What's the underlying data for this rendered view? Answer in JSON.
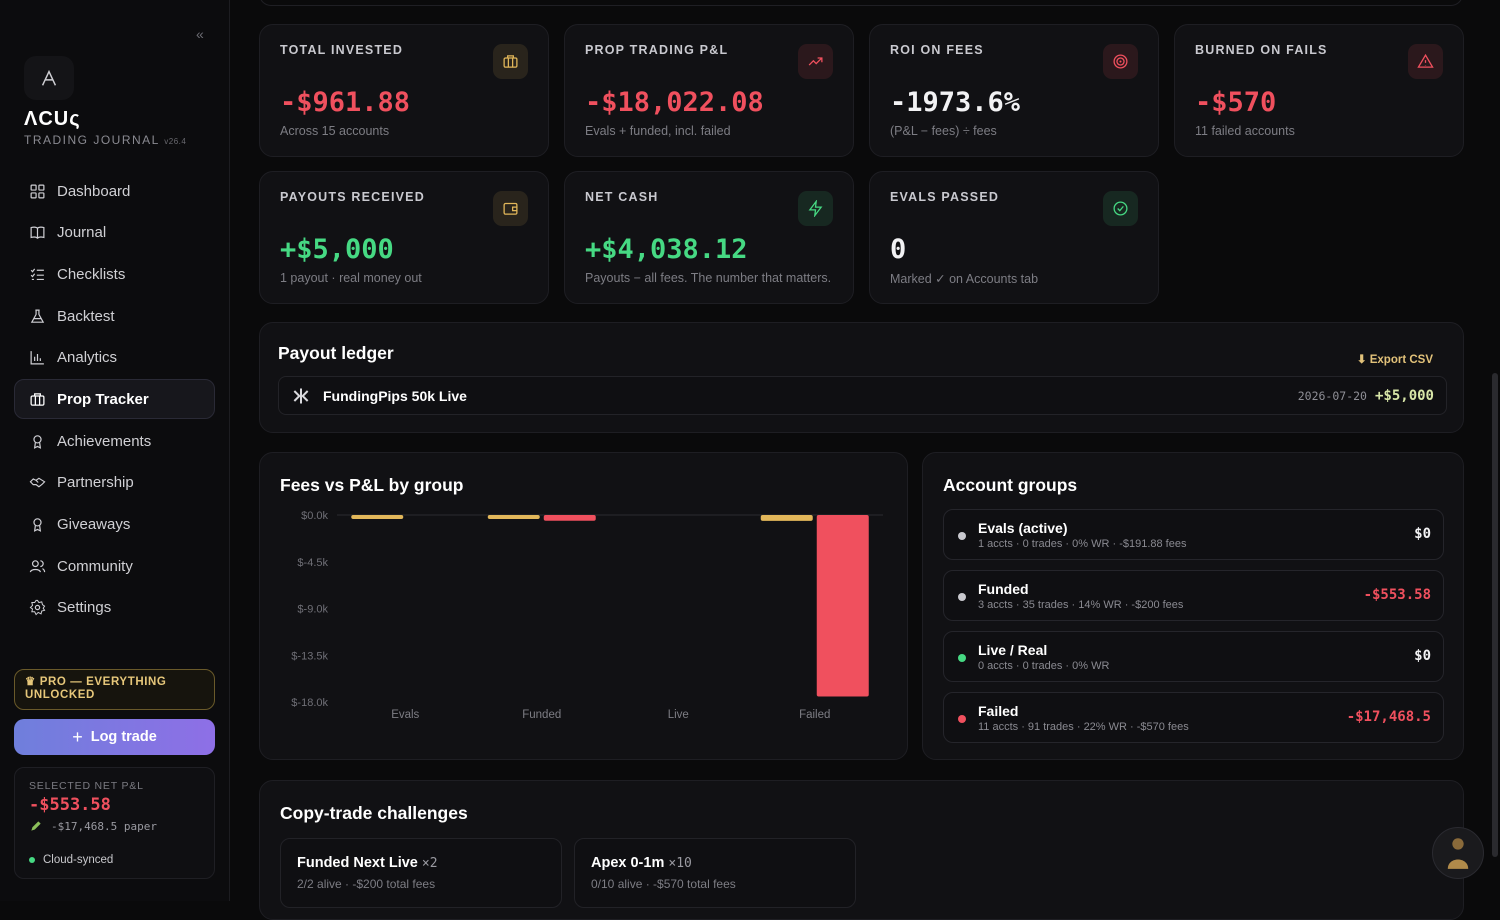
{
  "sidebar": {
    "collapse": "«",
    "brand": "ΛCUς",
    "brand_sub": "TRADING JOURNAL",
    "version": "v26.4",
    "items": [
      {
        "label": "Dashboard",
        "icon": "dashboard-icon"
      },
      {
        "label": "Journal",
        "icon": "book-icon"
      },
      {
        "label": "Checklists",
        "icon": "checklist-icon"
      },
      {
        "label": "Backtest",
        "icon": "flask-icon"
      },
      {
        "label": "Analytics",
        "icon": "bar-chart-icon"
      },
      {
        "label": "Prop Tracker",
        "icon": "briefcase-icon",
        "active": true
      },
      {
        "label": "Achievements",
        "icon": "award-icon"
      },
      {
        "label": "Partnership",
        "icon": "handshake-icon"
      },
      {
        "label": "Giveaways",
        "icon": "gift-icon"
      },
      {
        "label": "Community",
        "icon": "users-icon"
      },
      {
        "label": "Settings",
        "icon": "gear-icon"
      }
    ],
    "pro_badge": "PRO — EVERYTHING UNLOCKED",
    "log_trade": "Log trade",
    "selected_label": "SELECTED NET P&L",
    "selected_value": "-$553.58",
    "selected_paper": "-$17,468.5 paper",
    "sync_status": "Cloud-synced"
  },
  "stats": [
    {
      "label": "TOTAL INVESTED",
      "value": "-$961.88",
      "sub": "Across 15 accounts",
      "tone": "neg",
      "icon": "briefcase-icon",
      "accent": "#e2b75a"
    },
    {
      "label": "PROP TRADING P&L",
      "value": "-$18,022.08",
      "sub": "Evals + funded, incl. failed",
      "tone": "neg",
      "icon": "trend-up-icon",
      "accent": "#f0505e"
    },
    {
      "label": "ROI ON FEES",
      "value": "-1973.6%",
      "sub": "(P&L − fees) ÷ fees",
      "tone": "neu",
      "icon": "target-icon",
      "accent": "#f0505e"
    },
    {
      "label": "BURNED ON FAILS",
      "value": "-$570",
      "sub": "11 failed accounts",
      "tone": "neg",
      "icon": "alert-icon",
      "accent": "#f0505e"
    },
    {
      "label": "PAYOUTS RECEIVED",
      "value": "+$5,000",
      "sub": "1 payout · real money out",
      "tone": "pos",
      "icon": "wallet-icon",
      "accent": "#e2b75a"
    },
    {
      "label": "NET CASH",
      "value": "+$4,038.12",
      "sub": "Payouts − all fees. The number that matters.",
      "tone": "pos",
      "icon": "bolt-icon",
      "accent": "#46d983"
    },
    {
      "label": "EVALS PASSED",
      "value": "0",
      "sub": "Marked ✓ on Accounts tab",
      "tone": "neu",
      "icon": "check-circle-icon",
      "accent": "#46d983"
    }
  ],
  "ledger": {
    "title": "Payout ledger",
    "export": "⬇ Export CSV",
    "rows": [
      {
        "name": "FundingPips 50k Live",
        "date": "2026-07-20",
        "amount": "+$5,000"
      }
    ]
  },
  "chart": {
    "title": "Fees vs P&L by group"
  },
  "chart_data": {
    "type": "bar",
    "categories": [
      "Evals",
      "Funded",
      "Live",
      "Failed"
    ],
    "series": [
      {
        "values": [
          -191.88,
          -200,
          0,
          -570
        ],
        "color": "#e2b75a"
      },
      {
        "values": [
          0,
          -553.58,
          0,
          -17468.5
        ],
        "color": "#f0505e"
      }
    ],
    "yticks": [
      "$0.0k",
      "$-4.5k",
      "$-9.0k",
      "$-13.5k",
      "$-18.0k"
    ],
    "ylim": [
      -18000,
      0
    ]
  },
  "groups": {
    "title": "Account groups",
    "rows": [
      {
        "name": "Evals (active)",
        "meta": "1 accts · 0 trades · 0% WR · -$191.88 fees",
        "value": "$0",
        "dot": "#c9c9cf",
        "tone": "neu"
      },
      {
        "name": "Funded",
        "meta": "3 accts · 35 trades · 14% WR · -$200 fees",
        "value": "-$553.58",
        "dot": "#c9c9cf",
        "tone": "neg"
      },
      {
        "name": "Live / Real",
        "meta": "0 accts · 0 trades · 0% WR",
        "value": "$0",
        "dot": "#46d983",
        "tone": "neu"
      },
      {
        "name": "Failed",
        "meta": "11 accts · 91 trades · 22% WR · -$570 fees",
        "value": "-$17,468.5",
        "dot": "#f0505e",
        "tone": "neg"
      }
    ]
  },
  "copytrade": {
    "title": "Copy-trade challenges",
    "cards": [
      {
        "name": "Funded Next Live",
        "mult": "×2",
        "meta": "2/2 alive · -$200 total fees"
      },
      {
        "name": "Apex 0-1m",
        "mult": "×10",
        "meta": "0/10 alive · -$570 total fees"
      }
    ]
  }
}
